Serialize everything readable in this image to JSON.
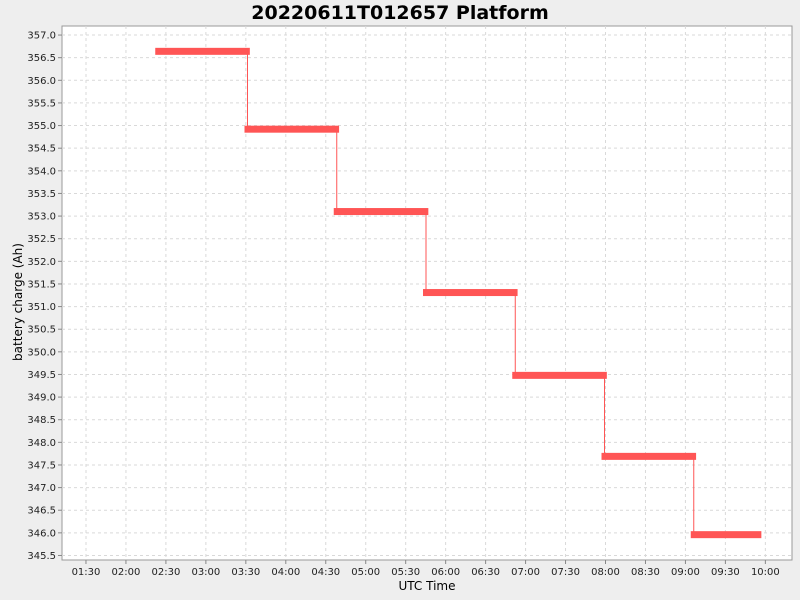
{
  "chart_data": {
    "type": "line",
    "title": "20220611T012657 Platform",
    "xlabel": "UTC Time",
    "ylabel": "battery charge (Ah)",
    "grid": true,
    "series_color": "#ff5555",
    "x_ticks": [
      "01:30",
      "02:00",
      "02:30",
      "03:00",
      "03:30",
      "04:00",
      "04:30",
      "05:00",
      "05:30",
      "06:00",
      "06:30",
      "07:00",
      "07:30",
      "08:00",
      "08:30",
      "09:00",
      "09:30",
      "10:00"
    ],
    "xlim": [
      "01:12",
      "10:20"
    ],
    "ylim": [
      345.4,
      357.2
    ],
    "y_ticks": [
      345.5,
      346.0,
      346.5,
      347.0,
      347.5,
      348.0,
      348.5,
      349.0,
      349.5,
      350.0,
      350.5,
      351.0,
      351.5,
      352.0,
      352.5,
      353.0,
      353.5,
      354.0,
      354.5,
      355.0,
      355.5,
      356.0,
      356.5,
      357.0
    ],
    "series": [
      {
        "segments": [
          {
            "start": "02:22",
            "end": "03:33",
            "value": 356.64
          },
          {
            "start": "03:29",
            "end": "04:40",
            "value": 354.92
          },
          {
            "start": "04:36",
            "end": "05:47",
            "value": 353.1
          },
          {
            "start": "05:43",
            "end": "06:54",
            "value": 351.31
          },
          {
            "start": "06:50",
            "end": "08:01",
            "value": 349.48
          },
          {
            "start": "07:57",
            "end": "09:08",
            "value": 347.69
          },
          {
            "start": "09:04",
            "end": "09:57",
            "value": 345.96
          }
        ]
      }
    ]
  }
}
